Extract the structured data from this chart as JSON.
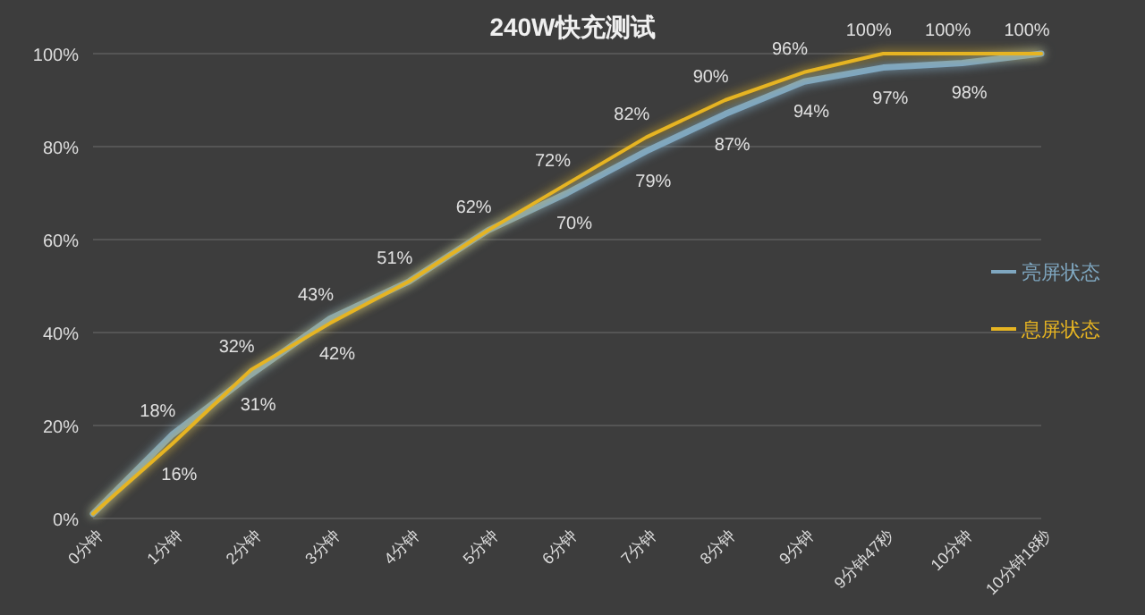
{
  "chart_data": {
    "type": "line",
    "title": "240W快充测试",
    "categories": [
      "0分钟",
      "1分钟",
      "2分钟",
      "3分钟",
      "4分钟",
      "5分钟",
      "6分钟",
      "7分钟",
      "8分钟",
      "9分钟",
      "9分钟47秒",
      "10分钟",
      "10分钟18秒"
    ],
    "series": [
      {
        "name": "亮屏状态",
        "color": "#7fa7c0",
        "values": [
          1,
          18,
          31,
          43,
          51,
          62,
          70,
          79,
          87,
          94,
          97,
          98,
          100
        ],
        "value_labels": [
          null,
          "18%",
          "31%",
          "43%",
          null,
          null,
          "70%",
          "79%",
          "87%",
          "94%",
          "97%",
          "98%",
          null
        ]
      },
      {
        "name": "息屏状态",
        "color": "#e6b422",
        "values": [
          1,
          16,
          32,
          42,
          51,
          62,
          72,
          82,
          90,
          96,
          100,
          100,
          100
        ],
        "value_labels": [
          null,
          "16%",
          "32%",
          "42%",
          "51%",
          "62%",
          "72%",
          "82%",
          "90%",
          "96%",
          "100%",
          "100%",
          "100%"
        ]
      }
    ],
    "ylim": [
      0,
      100
    ],
    "yticks": [
      {
        "value": 0,
        "label": "0%"
      },
      {
        "value": 20,
        "label": "20%"
      },
      {
        "value": 40,
        "label": "40%"
      },
      {
        "value": 60,
        "label": "60%"
      },
      {
        "value": 80,
        "label": "80%"
      },
      {
        "value": 100,
        "label": "100%"
      }
    ],
    "grid": "y",
    "legend": "right",
    "marker": "none",
    "line_style": "solid"
  }
}
